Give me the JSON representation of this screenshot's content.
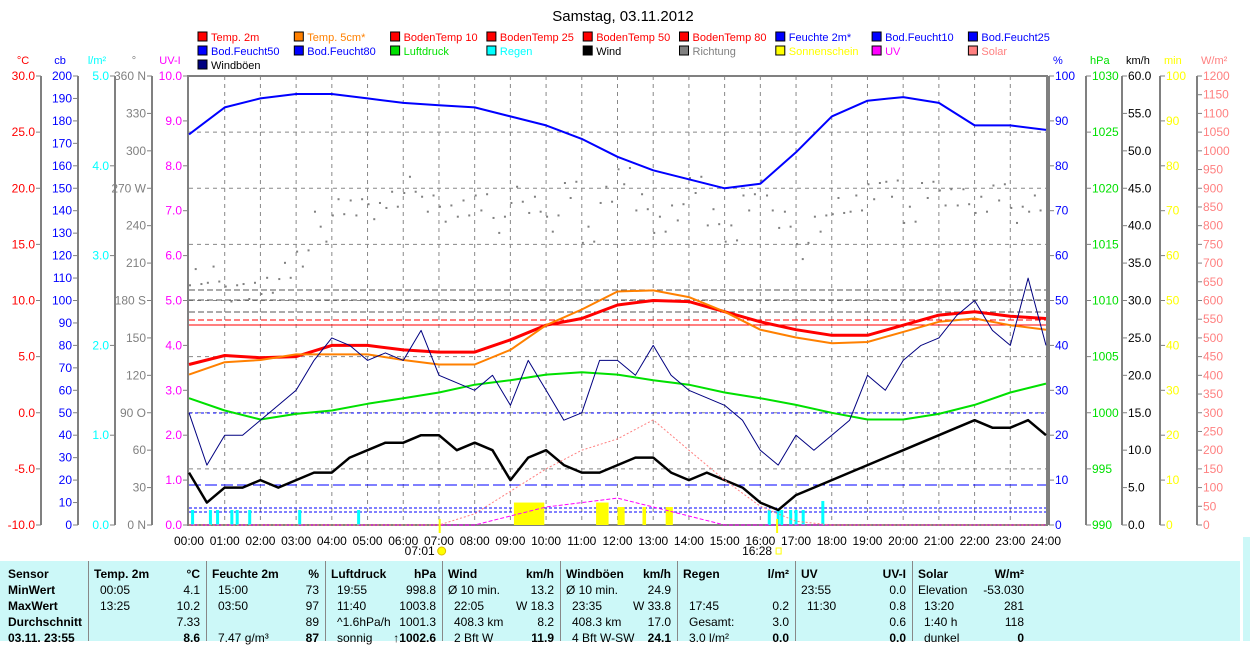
{
  "title": "Samstag, 03.11.2012",
  "legend": [
    {
      "label": "Temp. 2m",
      "color": "#ff0000"
    },
    {
      "label": "Temp. 5cm*",
      "color": "#ff8000"
    },
    {
      "label": "BodenTemp 10",
      "color": "#ff0000"
    },
    {
      "label": "BodenTemp 25",
      "color": "#ff0000"
    },
    {
      "label": "BodenTemp 50",
      "color": "#ff0000"
    },
    {
      "label": "BodenTemp 80",
      "color": "#ff0000"
    },
    {
      "label": "Feuchte 2m*",
      "color": "#0000ff"
    },
    {
      "label": "Bod.Feucht10",
      "color": "#0000ff"
    },
    {
      "label": "Bod.Feucht25",
      "color": "#0000ff"
    },
    {
      "label": "Bod.Feucht50",
      "color": "#0000ff"
    },
    {
      "label": "Bod.Feucht80",
      "color": "#0000ff"
    },
    {
      "label": "Luftdruck",
      "color": "#00e000"
    },
    {
      "label": "Regen",
      "color": "#00ffff"
    },
    {
      "label": "Wind",
      "color": "#000000"
    },
    {
      "label": "Richtung",
      "color": "#808080"
    },
    {
      "label": "Sonnenschein",
      "color": "#ffff00"
    },
    {
      "label": "UV",
      "color": "#ff00ff"
    },
    {
      "label": "Solar",
      "color": "#ff8080"
    },
    {
      "label": "Windböen",
      "color": "#000080"
    }
  ],
  "chart_data": {
    "type": "line",
    "title": "Samstag, 03.11.2012",
    "x_ticks": [
      "00:00",
      "01:00",
      "02:00",
      "03:00",
      "04:00",
      "05:00",
      "06:00",
      "07:00",
      "08:00",
      "09:00",
      "10:00",
      "11:00",
      "12:00",
      "13:00",
      "14:00",
      "15:00",
      "16:00",
      "17:00",
      "18:00",
      "19:00",
      "20:00",
      "21:00",
      "22:00",
      "23:00",
      "24:00"
    ],
    "xlim_hours": [
      0,
      24
    ],
    "grid": true,
    "sunrise": {
      "label": "07:01",
      "hour": 7.02
    },
    "sunset": {
      "label": "16:28",
      "hour": 16.47
    },
    "axes": {
      "left": [
        {
          "unit": "°C",
          "min": -10,
          "max": 30,
          "step": 5,
          "decimals": 1,
          "color": "#ff0000"
        },
        {
          "unit": "cb",
          "min": 0,
          "max": 200,
          "step": 10,
          "decimals": 0,
          "color": "#0000ff"
        },
        {
          "unit": "l/m²",
          "min": 0,
          "max": 5,
          "step": 1,
          "decimals": 1,
          "color": "#00ffff"
        },
        {
          "unit": "°",
          "min": 0,
          "max": 360,
          "step": 30,
          "color": "#808080",
          "labels": [
            "0  N",
            "30",
            "60",
            "90  O",
            "120",
            "150",
            "180 S",
            "210",
            "240",
            "270 W",
            "300",
            "330",
            "360 N"
          ]
        },
        {
          "unit": "UV-I",
          "min": 0,
          "max": 10,
          "step": 1,
          "decimals": 1,
          "color": "#ff00ff"
        }
      ],
      "right": [
        {
          "unit": "%",
          "min": 0,
          "max": 100,
          "step": 10,
          "decimals": 0,
          "color": "#0000ff"
        },
        {
          "unit": "hPa",
          "min": 990,
          "max": 1030,
          "step": 5,
          "decimals": 0,
          "color": "#00e000"
        },
        {
          "unit": "km/h",
          "min": 0,
          "max": 60,
          "step": 5,
          "decimals": 1,
          "color": "#000000"
        },
        {
          "unit": "min",
          "min": 0,
          "max": 100,
          "step": 10,
          "decimals": 0,
          "color": "#ffff00"
        },
        {
          "unit": "W/m²",
          "min": 0,
          "max": 1200,
          "step": 50,
          "decimals": 0,
          "color": "#ff8080"
        }
      ]
    },
    "series": [
      {
        "name": "Temp. 2m",
        "axis": "°C",
        "step_h": 1,
        "color": "#ff0000",
        "width": 3,
        "values": [
          4.3,
          5.1,
          4.9,
          5.0,
          6.0,
          6.0,
          5.6,
          5.4,
          5.4,
          6.5,
          7.8,
          8.4,
          9.6,
          10.0,
          9.9,
          9.0,
          8.1,
          7.4,
          6.9,
          6.9,
          7.8,
          8.7,
          9.0,
          8.6,
          8.4
        ]
      },
      {
        "name": "Temp. 5cm*",
        "axis": "°C",
        "step_h": 1,
        "color": "#ff8000",
        "width": 2,
        "values": [
          3.4,
          4.5,
          4.7,
          5.2,
          5.2,
          5.2,
          4.7,
          4.3,
          4.3,
          5.6,
          7.8,
          9.2,
          10.8,
          10.9,
          10.3,
          9.0,
          7.4,
          6.7,
          6.2,
          6.3,
          7.2,
          8.1,
          8.4,
          7.8,
          7.4
        ]
      },
      {
        "name": "Feuchte 2m*",
        "axis": "%",
        "step_h": 1,
        "color": "#0000ff",
        "width": 2,
        "values": [
          87,
          93,
          95,
          96,
          96,
          95,
          94,
          93.5,
          93,
          91,
          89,
          86,
          82,
          79,
          77,
          75,
          76,
          83,
          91,
          94.5,
          95.3,
          94,
          89,
          89,
          88
        ]
      },
      {
        "name": "Luftdruck",
        "axis": "hPa",
        "step_h": 1,
        "color": "#00e000",
        "width": 2,
        "values": [
          1001.3,
          1000.2,
          999.4,
          999.9,
          1000.2,
          1000.8,
          1001.3,
          1001.8,
          1002.5,
          1002.9,
          1003.4,
          1003.6,
          1003.4,
          1002.9,
          1002.5,
          1001.8,
          1001.3,
          1000.7,
          1000.0,
          999.4,
          999.4,
          999.9,
          1000.7,
          1001.8,
          1002.6
        ]
      },
      {
        "name": "Windböen",
        "axis": "km/h",
        "step_h": 0.5,
        "color": "#000080",
        "width": 1,
        "values": [
          15,
          8,
          12,
          12,
          14,
          16,
          18,
          22,
          25,
          24,
          22,
          23,
          22,
          26,
          20,
          19,
          18,
          20,
          16,
          22,
          18,
          14,
          15,
          22,
          22,
          20,
          24,
          20,
          18,
          17,
          16,
          14,
          10,
          8,
          12,
          10,
          12,
          14,
          20,
          18,
          22,
          24,
          25,
          28,
          30,
          26,
          24,
          33,
          24
        ]
      },
      {
        "name": "Wind",
        "axis": "km/h",
        "step_h": 0.5,
        "color": "#000000",
        "width": 2.5,
        "values": [
          7,
          3,
          5,
          5,
          6,
          5,
          6,
          7,
          7,
          9,
          10,
          11,
          11,
          12,
          12,
          10,
          11,
          10,
          6,
          9,
          10,
          8,
          7,
          7,
          8,
          9,
          9,
          7,
          6,
          7,
          6,
          5,
          3,
          2,
          4,
          5,
          6,
          7,
          8,
          9,
          10,
          11,
          12,
          13,
          14,
          13,
          13,
          14,
          12
        ]
      },
      {
        "name": "UV",
        "axis": "UV-I",
        "step_h": 1,
        "color": "#ff00ff",
        "width": 1,
        "dash": "4,2",
        "values": [
          0,
          0,
          0,
          0,
          0,
          0,
          0,
          0,
          0,
          0.2,
          0.4,
          0.5,
          0.6,
          0.4,
          0.2,
          0,
          0,
          0,
          0,
          0,
          0,
          0,
          0,
          0,
          0
        ]
      },
      {
        "name": "Solar",
        "axis": "W/m²",
        "step_h": 1,
        "color": "#ff8080",
        "width": 1,
        "dash": "2,2",
        "values": [
          0,
          0,
          0,
          0,
          0,
          0,
          0,
          0,
          30,
          90,
          150,
          200,
          230,
          281,
          200,
          120,
          50,
          10,
          0,
          0,
          0,
          0,
          0,
          0,
          0
        ]
      }
    ],
    "direction": {
      "name": "Richtung",
      "axis": "°",
      "step_h": 0.5,
      "color": "#808080",
      "values": [
        205,
        200,
        190,
        185,
        195,
        200,
        215,
        240,
        255,
        260,
        250,
        265,
        270,
        260,
        245,
        255,
        265,
        240,
        270,
        255,
        245,
        265,
        235,
        260,
        280,
        265,
        240,
        255,
        270,
        250,
        230,
        260,
        265,
        245,
        225,
        240,
        260,
        255,
        270,
        265,
        250,
        275,
        262,
        268,
        255,
        270,
        245,
        260,
        258
      ]
    },
    "rain": {
      "name": "Regen",
      "axis": "l/m²",
      "color": "#00ffff",
      "bars": [
        [
          0.1,
          0.1
        ],
        [
          0.6,
          0.1
        ],
        [
          0.8,
          0.1
        ],
        [
          1.2,
          0.1
        ],
        [
          1.35,
          0.1
        ],
        [
          1.7,
          0.1
        ],
        [
          3.1,
          0.1
        ],
        [
          4.75,
          0.1
        ],
        [
          16.25,
          0.1
        ],
        [
          16.5,
          0.1
        ],
        [
          16.6,
          0.1
        ],
        [
          16.85,
          0.1
        ],
        [
          17.0,
          0.1
        ],
        [
          17.2,
          0.1
        ],
        [
          17.75,
          0.2
        ]
      ]
    },
    "sunshine": {
      "name": "Sonnenschein",
      "axis": "min",
      "color": "#ffff00",
      "bars": [
        [
          9.1,
          9.95,
          5
        ],
        [
          11.4,
          11.75,
          5
        ],
        [
          12.0,
          12.2,
          4
        ],
        [
          12.7,
          12.8,
          4
        ],
        [
          13.35,
          13.55,
          4
        ]
      ]
    }
  },
  "table": {
    "row_labels": [
      "Sensor",
      "MinWert",
      "MaxWert",
      "Durchschnitt",
      "03.11. 23:55"
    ],
    "columns": [
      {
        "name": "Temp. 2m",
        "unit": "°C",
        "rows": [
          [
            "00:05",
            "4.1"
          ],
          [
            "13:25",
            "10.2"
          ],
          [
            "",
            "7.33"
          ],
          [
            "",
            "8.6"
          ]
        ]
      },
      {
        "name": "Feuchte 2m",
        "unit": "%",
        "rows": [
          [
            "15:00",
            "73"
          ],
          [
            "03:50",
            "97"
          ],
          [
            "",
            "89"
          ],
          [
            "7.47 g/m³",
            "87"
          ]
        ]
      },
      {
        "name": "Luftdruck",
        "unit": "hPa",
        "rows": [
          [
            "19:55",
            "998.8"
          ],
          [
            "11:40",
            "1003.8"
          ],
          [
            "^1.6hPa/h",
            "1001.3"
          ],
          [
            "sonnig",
            "↑1002.6"
          ]
        ]
      },
      {
        "name": "Wind",
        "unit": "km/h",
        "rows": [
          [
            "Ø 10 min.",
            "13.2"
          ],
          [
            "22:05",
            "W 18.3"
          ],
          [
            "408.3 km",
            "8.2"
          ],
          [
            "2 Bft W",
            "11.9"
          ]
        ]
      },
      {
        "name": "Windböen",
        "unit": "km/h",
        "rows": [
          [
            "Ø 10 min.",
            "24.9"
          ],
          [
            "23:35",
            "W 33.8"
          ],
          [
            "408.3 km",
            "17.0"
          ],
          [
            "4 Bft W-SW",
            "24.1"
          ]
        ]
      },
      {
        "name": "Regen",
        "unit": "l/m²",
        "rows": [
          [
            "",
            ""
          ],
          [
            "17:45",
            "0.2"
          ],
          [
            "Gesamt:",
            "3.0"
          ],
          [
            "3.0 l/m²",
            "0.0"
          ]
        ]
      },
      {
        "name": "UV",
        "unit": "UV-I",
        "rows": [
          [
            "23:55",
            "0.0"
          ],
          [
            "11:30",
            "0.8"
          ],
          [
            "",
            "0.6"
          ],
          [
            "",
            "0.0"
          ]
        ]
      },
      {
        "name": "Solar",
        "unit": "W/m²",
        "rows": [
          [
            "Elevation",
            "-53.030"
          ],
          [
            "13:20",
            "281"
          ],
          [
            "1:40 h",
            "118"
          ],
          [
            "dunkel",
            "0"
          ]
        ]
      }
    ]
  }
}
